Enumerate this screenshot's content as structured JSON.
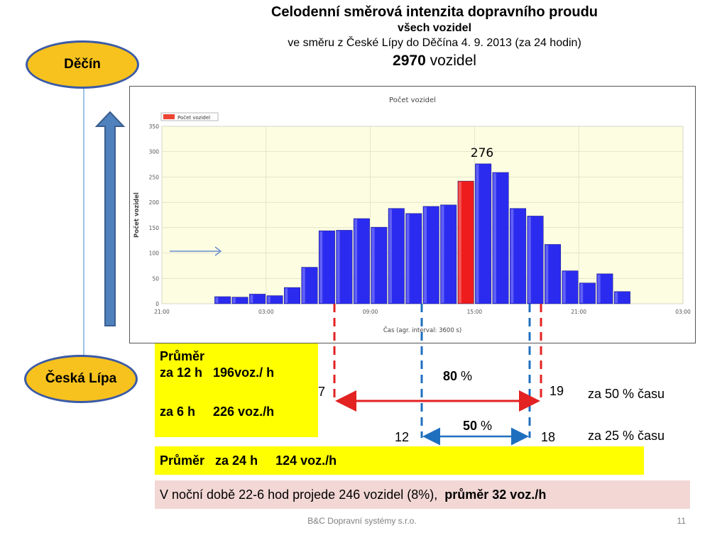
{
  "title": {
    "line1": "Celodenní směrová intenzita dopravního proudu",
    "line2": "všech vozidel",
    "line3": "ve směru z České Lípy do Děčína  4. 9. 2013 (za 24 hodin)",
    "total_value": "2970",
    "total_unit": " vozidel"
  },
  "places": {
    "top": "Děčín",
    "bottom": "Česká Lípa"
  },
  "chart_data": {
    "type": "bar",
    "title": "Počet vozidel",
    "legend": "Počet vozidel",
    "ylabel": "Počet vozidel",
    "xlabel": "Čas (agr. interval: 3600 s)",
    "ylim": [
      0,
      350
    ],
    "yticks": [
      "0",
      "50",
      "100",
      "150",
      "200",
      "250",
      "300",
      "350"
    ],
    "xticks": [
      "21:00",
      "03:00",
      "09:00",
      "15:00",
      "21:00",
      "03:00"
    ],
    "hours": [
      21,
      22,
      23,
      0,
      1,
      2,
      3,
      4,
      5,
      6,
      7,
      8,
      9,
      10,
      11,
      12,
      13,
      14,
      15,
      16,
      17,
      18,
      19,
      20,
      21,
      22,
      23,
      0,
      1,
      2
    ],
    "values": [
      null,
      null,
      null,
      14,
      13,
      19,
      16,
      32,
      72,
      144,
      145,
      168,
      151,
      188,
      178,
      192,
      195,
      242,
      276,
      259,
      188,
      173,
      117,
      65,
      41,
      59,
      24,
      null,
      null,
      null
    ],
    "highlight_hour": 14,
    "peak_label": "276",
    "colors": {
      "bar": "#2b2bf0",
      "highlight": "#ee1c1c",
      "plot_bg": "#fdfde2"
    }
  },
  "avg_box": {
    "heading": "Průměr",
    "line12": "za 12 h   196voz./ h",
    "line6": "za 6 h     226 voz./h"
  },
  "interval80": {
    "start": "7",
    "end": "19",
    "pct_value": "80",
    "pct_sign": " %",
    "time_note": "za 50 % času"
  },
  "interval50": {
    "start": "12",
    "end": "18",
    "pct_value": "50",
    "pct_sign": " %",
    "time_note": "za 25 % času"
  },
  "avg24": "Průměr   za 24 h     124 voz./h",
  "night": {
    "text": "V noční době 22-6 hod projede 246 vozidel (8%),  ",
    "bold": "průměr 32 voz./h"
  },
  "footer": {
    "company": "B&C Dopravní systémy s.r.o.",
    "page": "11"
  }
}
